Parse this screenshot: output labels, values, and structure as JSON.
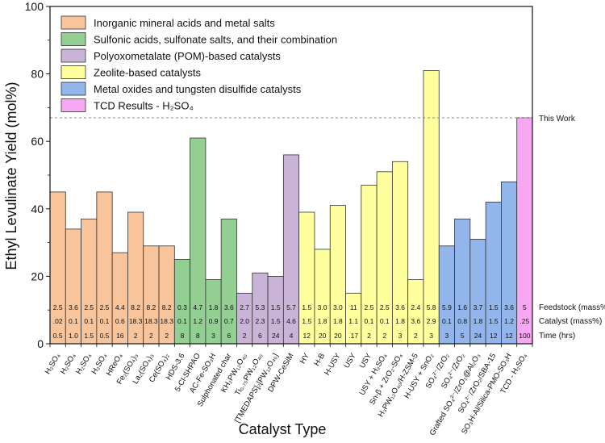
{
  "chart_data": {
    "type": "bar",
    "ylabel": "Ethyl Levulinate Yield (mol%)",
    "xlabel": "Catalyst Type",
    "ylim": [
      0,
      100
    ],
    "yticks": [
      "0",
      "20",
      "40",
      "60",
      "80",
      "100"
    ],
    "reference_line": {
      "value": 67,
      "label": "This Work"
    },
    "groups": [
      {
        "name": "Inorganic mineral acids and metal salts",
        "color": "#f7c49c"
      },
      {
        "name": "Sulfonic acids, sulfonate salts, and their combination",
        "color": "#93ce93"
      },
      {
        "name": "Polyoxometalate (POM)-based catalysts",
        "color": "#c9b3d7"
      },
      {
        "name": "Zeolite-based catalysts",
        "color": "#ffff9d"
      },
      {
        "name": "Metal oxides and tungsten disulfide catalysts",
        "color": "#92b6eb"
      },
      {
        "name": "TCD Results - H₂SO₄",
        "color": "#f8a8f2"
      }
    ],
    "row_labels": [
      "Feedstock (mass%)",
      "Catalyst (mass%)",
      "Time (hrs)"
    ],
    "bars": [
      {
        "label": "H₂SO₄",
        "value": 45,
        "group": 0,
        "feedstock": "2.5",
        "catalyst": ".02",
        "time": "0.5"
      },
      {
        "label": "H₂SO₄",
        "value": 34,
        "group": 0,
        "feedstock": "3.6",
        "catalyst": "0.1",
        "time": "1.0"
      },
      {
        "label": "H₂SO₄",
        "value": 37,
        "group": 0,
        "feedstock": "2.5",
        "catalyst": "0.1",
        "time": "1.5"
      },
      {
        "label": "H₂SO₄",
        "value": 45,
        "group": 0,
        "feedstock": "2.5",
        "catalyst": "0.1",
        "time": "0.5"
      },
      {
        "label": "HReO₄",
        "value": 27,
        "group": 0,
        "feedstock": "4.4",
        "catalyst": "0.6",
        "time": "16"
      },
      {
        "label": "Fe₂(SO₄)₃",
        "value": 39,
        "group": 0,
        "feedstock": "8.2",
        "catalyst": "18.3",
        "time": "2"
      },
      {
        "label": "La₂(SO₄)₃",
        "value": 29,
        "group": 0,
        "feedstock": "8.2",
        "catalyst": "18.3",
        "time": "2"
      },
      {
        "label": "Ce(SO₄)₂",
        "value": 29,
        "group": 0,
        "feedstock": "8.2",
        "catalyst": "18.3",
        "time": "2"
      },
      {
        "label": "HDS-3.6",
        "value": 25,
        "group": 1,
        "feedstock": "0.3",
        "catalyst": "0.1",
        "time": "8"
      },
      {
        "label": "5-Cl-SHPAO",
        "value": 61,
        "group": 1,
        "feedstock": "4.7",
        "catalyst": "1.2",
        "time": "8"
      },
      {
        "label": "AC-Fe-SO₃H",
        "value": 19,
        "group": 1,
        "feedstock": "1.8",
        "catalyst": "0.9",
        "time": "3"
      },
      {
        "label": "Sulphonated char",
        "value": 37,
        "group": 1,
        "feedstock": "3.6",
        "catalyst": "0.7",
        "time": "6"
      },
      {
        "label": "KH₂PW₁₂O₄₀",
        "value": 15,
        "group": 2,
        "feedstock": "2.7",
        "catalyst": "2.0",
        "time": "2"
      },
      {
        "label": "Ti₀.₇₅PW₁₂O₄₀",
        "value": 21,
        "group": 2,
        "feedstock": "5.3",
        "catalyst": "2.3",
        "time": "6"
      },
      {
        "label": "[TMEDAPS]₂[PW₁₂O₄₀]",
        "value": 20,
        "group": 2,
        "feedstock": "1.5",
        "catalyst": "1.5",
        "time": "24"
      },
      {
        "label": "DPW-CeSiM",
        "value": 56,
        "group": 2,
        "feedstock": "5.7",
        "catalyst": "4.6",
        "time": "4"
      },
      {
        "label": "HY",
        "value": 39,
        "group": 3,
        "feedstock": "1.5",
        "catalyst": "1.5",
        "time": "12"
      },
      {
        "label": "H-B",
        "value": 28,
        "group": 3,
        "feedstock": "3.0",
        "catalyst": "1.8",
        "time": "20"
      },
      {
        "label": "H-USY",
        "value": 41,
        "group": 3,
        "feedstock": "3.0",
        "catalyst": "1.8",
        "time": "20"
      },
      {
        "label": "USY",
        "value": 15,
        "group": 3,
        "feedstock": "11",
        "catalyst": "1.1",
        "time": ".17"
      },
      {
        "label": "USY",
        "value": 47,
        "group": 3,
        "feedstock": "2.5",
        "catalyst": "0.1",
        "time": "2"
      },
      {
        "label": "USY + H₂SO₄",
        "value": 51,
        "group": 3,
        "feedstock": "2.5",
        "catalyst": "0.1",
        "time": "2"
      },
      {
        "label": "Sn-β + ZrO₂-SO₄",
        "value": 54,
        "group": 3,
        "feedstock": "3.6",
        "catalyst": "1.8",
        "time": "3"
      },
      {
        "label": "H₃PW₁₂O₄₀/H-ZSM-5",
        "value": 19,
        "group": 3,
        "feedstock": "2.4",
        "catalyst": "3.6",
        "time": "2"
      },
      {
        "label": "H-USY + SnO₂",
        "value": 81,
        "group": 3,
        "feedstock": "5.8",
        "catalyst": "2.9",
        "time": "3"
      },
      {
        "label": "SO₄²⁻/ZrO₂",
        "value": 29,
        "group": 4,
        "feedstock": "5.9",
        "catalyst": "0.1",
        "time": "3"
      },
      {
        "label": "SO₄²⁻/ZrO₂",
        "value": 37,
        "group": 4,
        "feedstock": "1.6",
        "catalyst": "0.8",
        "time": "5"
      },
      {
        "label": "Grafted SO₄²⁻/ZrO₂@Al₂O₃",
        "value": 31,
        "group": 4,
        "feedstock": "3.7",
        "catalyst": "1.8",
        "time": "24"
      },
      {
        "label": "SO₄²⁻/ZrO₂/SBA-15",
        "value": 42,
        "group": 4,
        "feedstock": "1.5",
        "catalyst": "1.5",
        "time": "12"
      },
      {
        "label": "SO₃H-Al/Silica-PMO-SO₃H",
        "value": 48,
        "group": 4,
        "feedstock": "3.6",
        "catalyst": "1.2",
        "time": "12"
      },
      {
        "label": "TCD - H₂SO₄",
        "value": 67,
        "group": 5,
        "feedstock": "5",
        "catalyst": ".25",
        "time": "100"
      }
    ]
  }
}
